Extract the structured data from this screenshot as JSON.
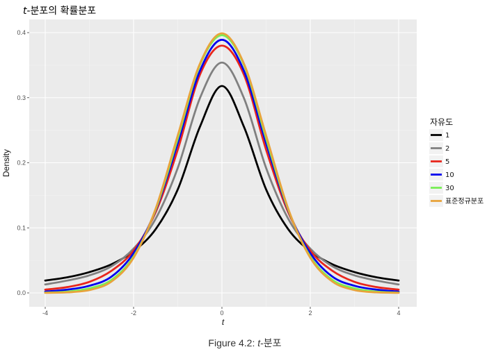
{
  "figure": {
    "title_var": "t",
    "title_rest": "-분포의 확률분포",
    "caption_prefix": "Figure 4.2: ",
    "caption_var": "t",
    "caption_rest": "-분포"
  },
  "chart_data": {
    "type": "line",
    "title": "t-분포의 확률분포",
    "xlabel": "t",
    "ylabel": "Density",
    "xlim": [
      -4,
      4
    ],
    "ylim": [
      0,
      0.4
    ],
    "x_ticks": [
      -4,
      -2,
      0,
      2,
      4
    ],
    "x_tick_labels": [
      "-4",
      "-2",
      "0",
      "2",
      "4"
    ],
    "y_ticks": [
      0,
      0.1,
      0.2,
      0.3,
      0.4
    ],
    "y_tick_labels": [
      "0.0",
      "0.1",
      "0.2",
      "0.3",
      "0.4"
    ],
    "grid": true,
    "legend_title": "자유도",
    "legend_position": "right",
    "x": [
      -4.0,
      -3.5,
      -3.0,
      -2.5,
      -2.0,
      -1.5,
      -1.0,
      -0.5,
      0.0,
      0.5,
      1.0,
      1.5,
      2.0,
      2.5,
      3.0,
      3.5,
      4.0
    ],
    "series": [
      {
        "name": "1",
        "color": "#000000",
        "values": [
          0.019,
          0.024,
          0.032,
          0.044,
          0.064,
          0.098,
          0.159,
          0.255,
          0.318,
          0.255,
          0.159,
          0.098,
          0.064,
          0.044,
          0.032,
          0.024,
          0.019
        ]
      },
      {
        "name": "2",
        "color": "#808080",
        "values": [
          0.013,
          0.019,
          0.027,
          0.041,
          0.068,
          0.114,
          0.192,
          0.299,
          0.354,
          0.299,
          0.192,
          0.114,
          0.068,
          0.041,
          0.027,
          0.019,
          0.013
        ]
      },
      {
        "name": "5",
        "color": "#e8261c",
        "values": [
          0.005,
          0.009,
          0.017,
          0.034,
          0.065,
          0.124,
          0.22,
          0.335,
          0.38,
          0.335,
          0.22,
          0.124,
          0.065,
          0.034,
          0.017,
          0.009,
          0.005
        ]
      },
      {
        "name": "10",
        "color": "#0000ee",
        "values": [
          0.002,
          0.005,
          0.011,
          0.025,
          0.061,
          0.127,
          0.23,
          0.341,
          0.389,
          0.341,
          0.23,
          0.127,
          0.061,
          0.025,
          0.011,
          0.005,
          0.002
        ]
      },
      {
        "name": "30",
        "color": "#77ee55",
        "values": [
          0.0005,
          0.002,
          0.007,
          0.02,
          0.056,
          0.128,
          0.237,
          0.35,
          0.396,
          0.35,
          0.237,
          0.128,
          0.056,
          0.02,
          0.007,
          0.002,
          0.0005
        ]
      },
      {
        "name": "표준정규분포",
        "color": "#e8a33c",
        "values": [
          0.0001,
          0.0009,
          0.0044,
          0.0175,
          0.054,
          0.1295,
          0.242,
          0.352,
          0.3989,
          0.352,
          0.242,
          0.1295,
          0.054,
          0.0175,
          0.0044,
          0.0009,
          0.0001
        ]
      }
    ]
  }
}
